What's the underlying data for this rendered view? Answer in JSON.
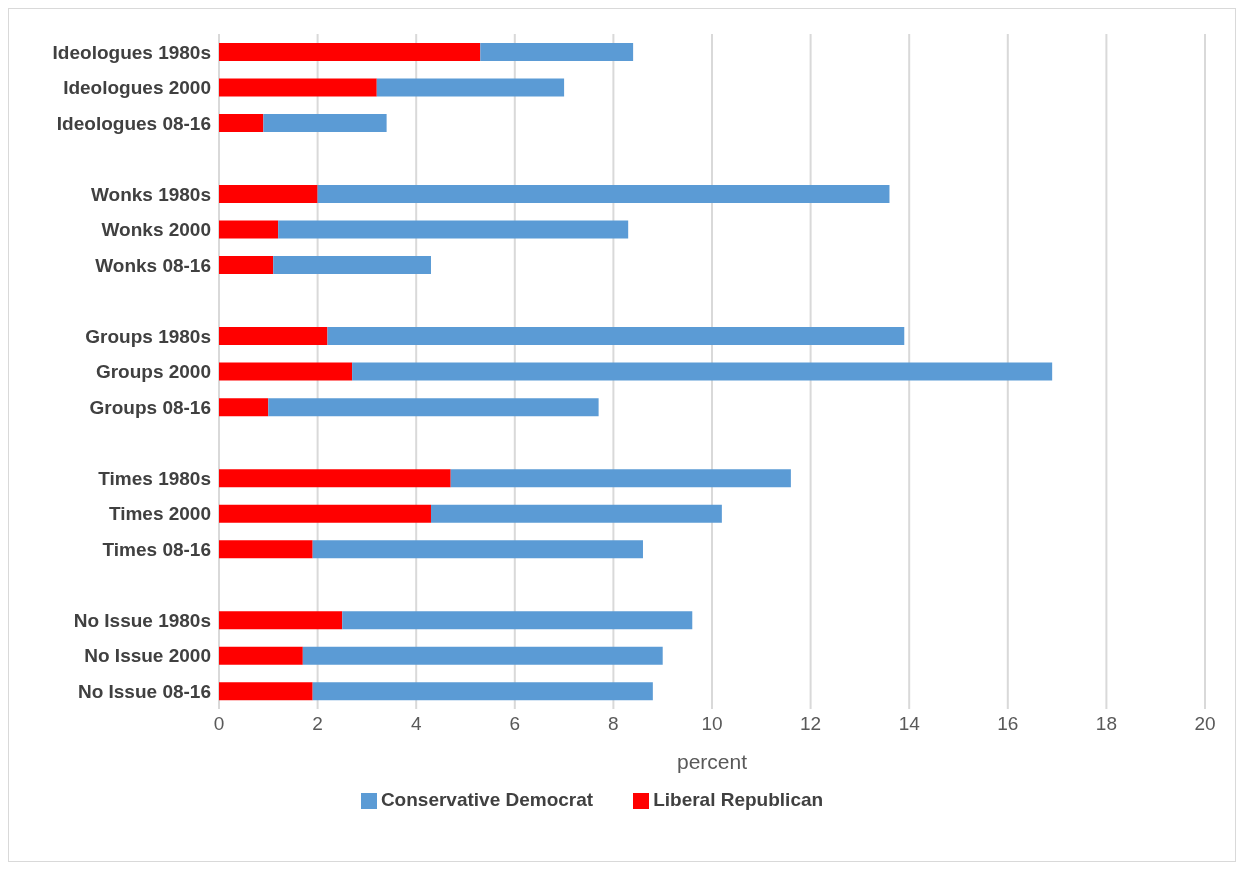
{
  "chart_data": {
    "type": "bar",
    "orientation": "horizontal",
    "stacked": true,
    "xlabel": "percent",
    "categories": [
      "Ideologues 1980s",
      "Ideologues 2000",
      "Ideologues 08-16",
      null,
      "Wonks 1980s",
      "Wonks 2000",
      "Wonks 08-16",
      null,
      "Groups 1980s",
      "Groups 2000",
      "Groups 08-16",
      null,
      "Times 1980s",
      "Times 2000",
      "Times 08-16",
      null,
      "No Issue 1980s",
      "No Issue 2000",
      "No Issue 08-16"
    ],
    "series": [
      {
        "name": "Liberal Republican",
        "color": "#ff0000",
        "values": [
          5.3,
          3.2,
          0.9,
          null,
          2.0,
          1.2,
          1.1,
          null,
          2.2,
          2.7,
          1.0,
          null,
          4.7,
          4.3,
          1.9,
          null,
          2.5,
          1.7,
          1.9
        ]
      },
      {
        "name": "Conservative Democrat",
        "color": "#5b9bd5",
        "values": [
          3.1,
          3.8,
          2.5,
          null,
          11.6,
          7.1,
          3.2,
          null,
          11.7,
          14.2,
          6.7,
          null,
          6.9,
          5.9,
          6.7,
          null,
          7.1,
          7.3,
          6.9
        ]
      }
    ],
    "xlim": [
      0,
      20
    ],
    "xticks": [
      0,
      2,
      4,
      6,
      8,
      10,
      12,
      14,
      16,
      18,
      20
    ],
    "grid": "x",
    "legend": "bottom"
  }
}
